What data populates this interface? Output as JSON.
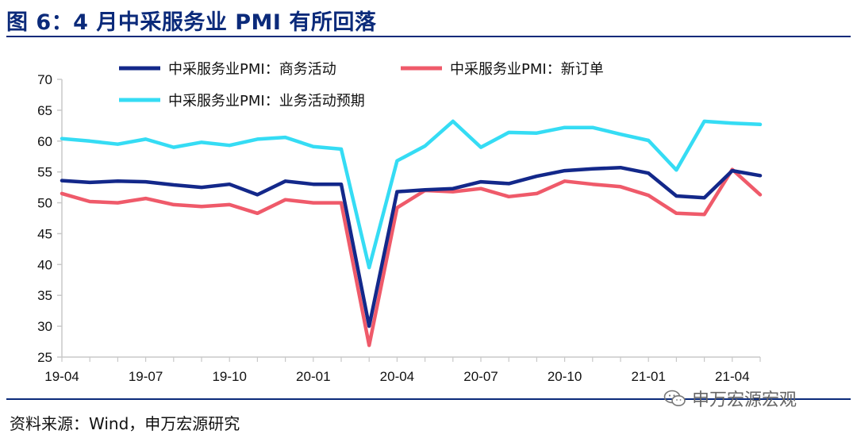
{
  "header": {
    "title": "图 6：4 月中采服务业 PMI 有所回落"
  },
  "footer": {
    "source": "资料来源：Wind，申万宏源研究"
  },
  "watermark": {
    "text": "申万宏源宏观",
    "icon": "wechat-icon"
  },
  "colors": {
    "accent": "#0b2a7a",
    "series1": "#13288a",
    "series2": "#ef5a6a",
    "series3": "#35dcf4",
    "axis": "#c8c8c8"
  },
  "chart_data": {
    "type": "line",
    "title": "",
    "xlabel": "",
    "ylabel": "",
    "ylim": [
      25,
      70
    ],
    "yticks": [
      25,
      30,
      35,
      40,
      45,
      50,
      55,
      60,
      65,
      70
    ],
    "x": [
      "19-04",
      "19-05",
      "19-06",
      "19-07",
      "19-08",
      "19-09",
      "19-10",
      "19-11",
      "19-12",
      "20-01",
      "20-02",
      "20-03",
      "20-04",
      "20-05",
      "20-06",
      "20-07",
      "20-08",
      "20-09",
      "20-10",
      "20-11",
      "20-12",
      "21-01",
      "21-02",
      "21-03",
      "21-04",
      "21-05"
    ],
    "xtick_labels": [
      "19-04",
      "19-07",
      "19-10",
      "20-01",
      "20-04",
      "20-07",
      "20-10",
      "21-01",
      "21-04"
    ],
    "series": [
      {
        "name": "中采服务业PMI：商务活动",
        "color": "#13288a",
        "values": [
          53.6,
          53.3,
          53.5,
          53.4,
          52.9,
          52.5,
          53.0,
          51.3,
          53.5,
          53.0,
          53.0,
          30.0,
          51.8,
          52.1,
          52.3,
          53.4,
          53.1,
          54.3,
          55.2,
          55.5,
          55.7,
          54.8,
          51.1,
          50.8,
          55.2,
          54.4
        ]
      },
      {
        "name": "中采服务业PMI：新订单",
        "color": "#ef5a6a",
        "values": [
          51.5,
          50.2,
          50.0,
          50.7,
          49.7,
          49.4,
          49.7,
          48.3,
          50.5,
          50.0,
          50.0,
          26.9,
          49.2,
          52.0,
          51.8,
          52.3,
          51.0,
          51.5,
          53.5,
          53.0,
          52.6,
          51.2,
          48.3,
          48.1,
          55.4,
          51.3
        ]
      },
      {
        "name": "中采服务业PMI：业务活动预期",
        "color": "#35dcf4",
        "values": [
          60.4,
          60.0,
          59.5,
          60.3,
          59.0,
          59.8,
          59.3,
          60.3,
          60.6,
          59.1,
          58.7,
          39.5,
          56.8,
          59.2,
          63.2,
          59.0,
          61.4,
          61.3,
          62.2,
          62.2,
          61.1,
          60.1,
          55.3,
          63.2,
          62.9,
          62.7
        ]
      }
    ],
    "legend_position": "top"
  }
}
